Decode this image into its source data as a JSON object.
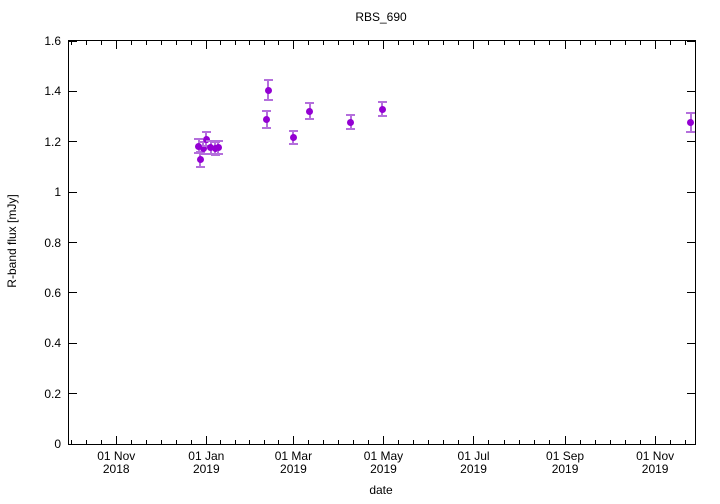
{
  "figure": {
    "background_color": "#ffffff",
    "axis_color": "#000000"
  },
  "chart_data": {
    "type": "scatter",
    "title": "RBS_690",
    "xlabel": "date",
    "ylabel": "R-band flux [mJy]",
    "legend": "none",
    "grid": false,
    "x_range": [
      "2018-09-30",
      "2019-11-28"
    ],
    "ylim": [
      0,
      1.6
    ],
    "x_major_ticks": [
      {
        "date": "2018-11-01",
        "line1": "01 Nov",
        "line2": "2018"
      },
      {
        "date": "2019-01-01",
        "line1": "01 Jan",
        "line2": "2019"
      },
      {
        "date": "2019-03-01",
        "line1": "01 Mar",
        "line2": "2019"
      },
      {
        "date": "2019-05-01",
        "line1": "01 May",
        "line2": "2019"
      },
      {
        "date": "2019-07-01",
        "line1": "01 Jul",
        "line2": "2019"
      },
      {
        "date": "2019-09-01",
        "line1": "01 Sep",
        "line2": "2019"
      },
      {
        "date": "2019-11-01",
        "line1": "01 Nov",
        "line2": "2019"
      }
    ],
    "x_minor_divisions_per_major": 6,
    "y_ticks": [
      {
        "value": 0,
        "label": "0"
      },
      {
        "value": 0.2,
        "label": "0.2"
      },
      {
        "value": 0.4,
        "label": "0.4"
      },
      {
        "value": 0.6,
        "label": "0.6"
      },
      {
        "value": 0.8,
        "label": "0.8"
      },
      {
        "value": 1,
        "label": "1"
      },
      {
        "value": 1.2,
        "label": "1.2"
      },
      {
        "value": 1.4,
        "label": "1.4"
      },
      {
        "value": 1.6,
        "label": "1.6"
      }
    ],
    "series": [
      {
        "name": "R-band flux",
        "marker": "filled-circle",
        "marker_color": "#9400d3",
        "errorbar_color": "#b46fdc",
        "points": [
          {
            "date": "2018-12-27",
            "flux": 1.183,
            "err": 0.028
          },
          {
            "date": "2018-12-28",
            "flux": 1.128,
            "err": 0.03
          },
          {
            "date": "2018-12-30",
            "flux": 1.175,
            "err": 0.025
          },
          {
            "date": "2019-01-01",
            "flux": 1.21,
            "err": 0.028
          },
          {
            "date": "2019-01-04",
            "flux": 1.176,
            "err": 0.025
          },
          {
            "date": "2019-01-07",
            "flux": 1.174,
            "err": 0.025
          },
          {
            "date": "2019-01-09",
            "flux": 1.177,
            "err": 0.025
          },
          {
            "date": "2019-02-11",
            "flux": 1.289,
            "err": 0.034
          },
          {
            "date": "2019-02-12",
            "flux": 1.404,
            "err": 0.04
          },
          {
            "date": "2019-03-01",
            "flux": 1.217,
            "err": 0.026
          },
          {
            "date": "2019-03-12",
            "flux": 1.322,
            "err": 0.03
          },
          {
            "date": "2019-04-09",
            "flux": 1.278,
            "err": 0.028
          },
          {
            "date": "2019-04-30",
            "flux": 1.329,
            "err": 0.028
          },
          {
            "date": "2019-11-25",
            "flux": 1.276,
            "err": 0.038
          }
        ]
      }
    ]
  }
}
